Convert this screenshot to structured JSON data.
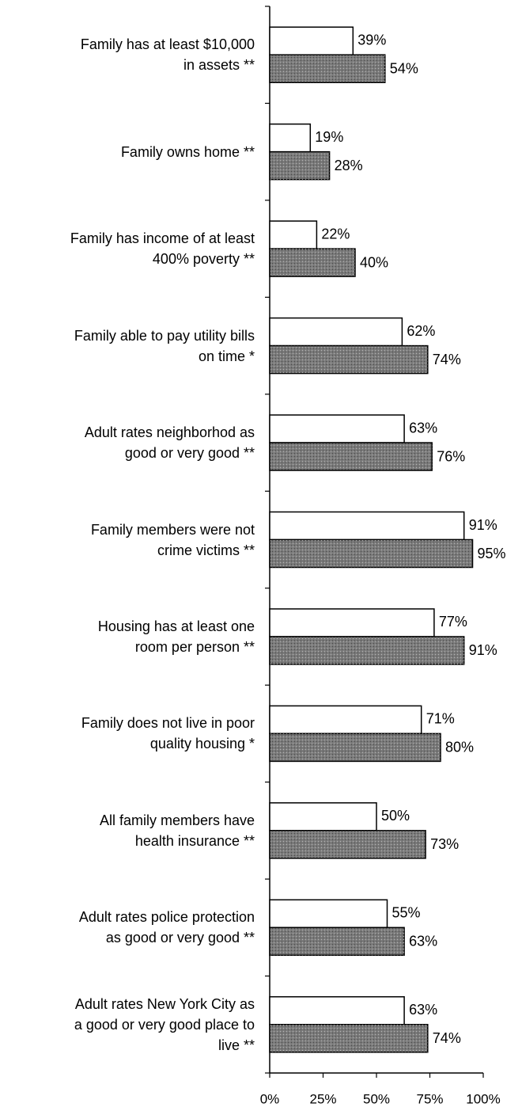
{
  "chart_data": {
    "type": "bar",
    "categories": [
      "Family has at least $10,000\nin assets **",
      "Family owns home **",
      "Family has income of at least\n400% poverty **",
      "Family able to pay utility bills\non time *",
      "Adult rates neighborhod as\ngood or very good **",
      "Family members were not\ncrime victims **",
      "Housing has at least one\nroom per person **",
      "Family does not live in poor\nquality housing *",
      "All family members have\nhealth insurance **",
      "Adult rates police protection\nas good or very good **",
      "Adult rates New York City as\na good or very good place to\nlive **"
    ],
    "series": [
      {
        "color": "#ffffff",
        "values": [
          39,
          19,
          22,
          62,
          63,
          91,
          77,
          71,
          50,
          55,
          63
        ],
        "value_labels": [
          "39%",
          "19%",
          "22%",
          "62%",
          "63%",
          "91%",
          "77%",
          "71%",
          "50%",
          "55%",
          "63%"
        ]
      },
      {
        "color": "#7a7a7a",
        "values": [
          54,
          28,
          40,
          74,
          76,
          95,
          91,
          80,
          73,
          63,
          74
        ],
        "value_labels": [
          "54%",
          "28%",
          "40%",
          "74%",
          "76%",
          "95%",
          "91%",
          "80%",
          "73%",
          "63%",
          "74%"
        ]
      }
    ],
    "xlim": [
      0,
      100
    ],
    "xticks": [
      {
        "value": 0,
        "label": "0%"
      },
      {
        "value": 25,
        "label": "25%"
      },
      {
        "value": 50,
        "label": "50%"
      },
      {
        "value": 75,
        "label": "75%"
      },
      {
        "value": 100,
        "label": "100%"
      }
    ]
  }
}
